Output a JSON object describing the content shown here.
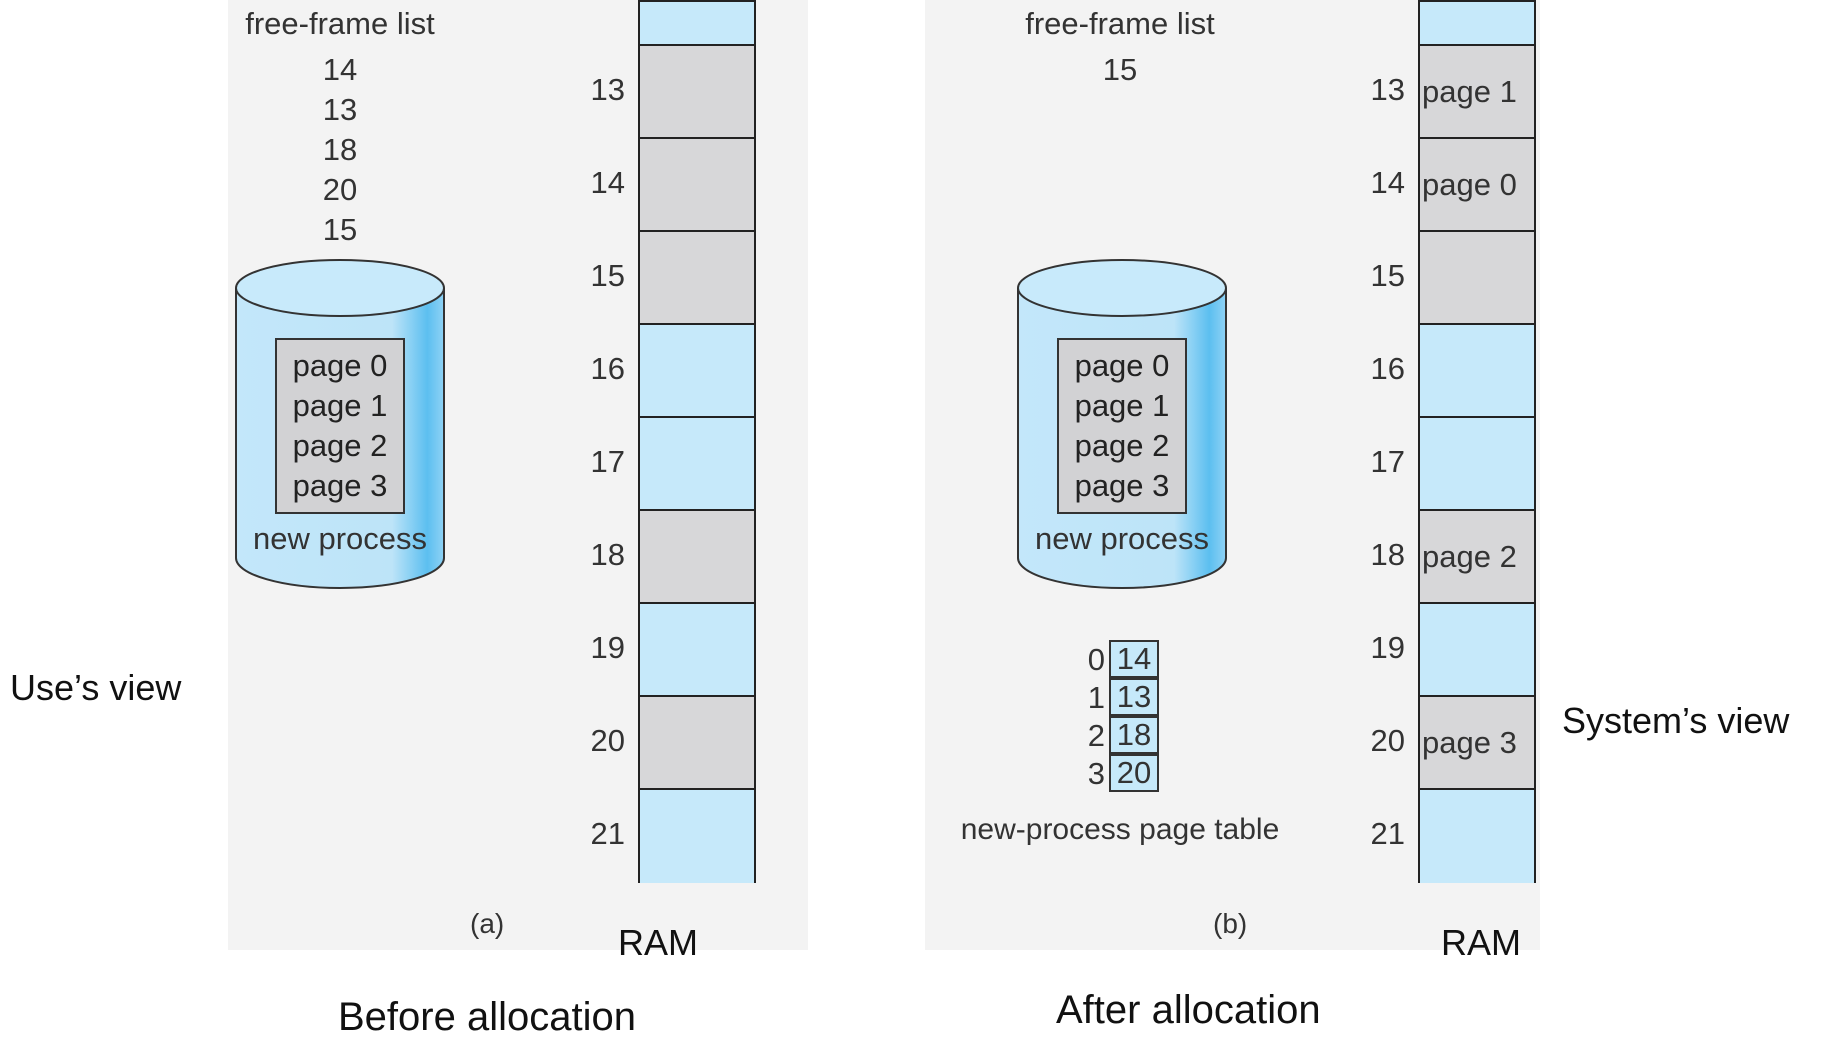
{
  "panel_a": {
    "free_frame_title": "free-frame list",
    "free_frames": [
      "14",
      "13",
      "18",
      "20",
      "15"
    ],
    "disk_pages": [
      "page 0",
      "page 1",
      "page 2",
      "page 3"
    ],
    "disk_label": "new process",
    "frames": [
      {
        "num": "",
        "content": "",
        "state": "free"
      },
      {
        "num": "13",
        "content": "",
        "state": "used"
      },
      {
        "num": "14",
        "content": "",
        "state": "used"
      },
      {
        "num": "15",
        "content": "",
        "state": "used"
      },
      {
        "num": "16",
        "content": "",
        "state": "free"
      },
      {
        "num": "17",
        "content": "",
        "state": "free"
      },
      {
        "num": "18",
        "content": "",
        "state": "used"
      },
      {
        "num": "19",
        "content": "",
        "state": "free"
      },
      {
        "num": "20",
        "content": "",
        "state": "used"
      },
      {
        "num": "21",
        "content": "",
        "state": "free"
      }
    ],
    "letter": "(a)",
    "ram_label": "RAM",
    "caption": "Before allocation",
    "side_label": "Use’s view"
  },
  "panel_b": {
    "free_frame_title": "free-frame list",
    "free_frames": [
      "15"
    ],
    "disk_pages": [
      "page 0",
      "page 1",
      "page 2",
      "page 3"
    ],
    "disk_label": "new process",
    "page_table": [
      {
        "index": "0",
        "frame": "14"
      },
      {
        "index": "1",
        "frame": "13"
      },
      {
        "index": "2",
        "frame": "18"
      },
      {
        "index": "3",
        "frame": "20"
      }
    ],
    "page_table_label": "new-process page table",
    "frames": [
      {
        "num": "",
        "content": "",
        "state": "free"
      },
      {
        "num": "13",
        "content": "page 1",
        "state": "used"
      },
      {
        "num": "14",
        "content": "page 0",
        "state": "used"
      },
      {
        "num": "15",
        "content": "",
        "state": "used"
      },
      {
        "num": "16",
        "content": "",
        "state": "free"
      },
      {
        "num": "17",
        "content": "",
        "state": "free"
      },
      {
        "num": "18",
        "content": "page 2",
        "state": "used"
      },
      {
        "num": "19",
        "content": "",
        "state": "free"
      },
      {
        "num": "20",
        "content": "page 3",
        "state": "used"
      },
      {
        "num": "21",
        "content": "",
        "state": "free"
      }
    ],
    "letter": "(b)",
    "ram_label": "RAM",
    "caption": "After allocation",
    "side_label": "System’s view"
  },
  "colors": {
    "free": "#c6e9fa",
    "used": "#d7d7d9",
    "disk_side": "#bfe6f8",
    "disk_edge": "#58bdf0"
  }
}
